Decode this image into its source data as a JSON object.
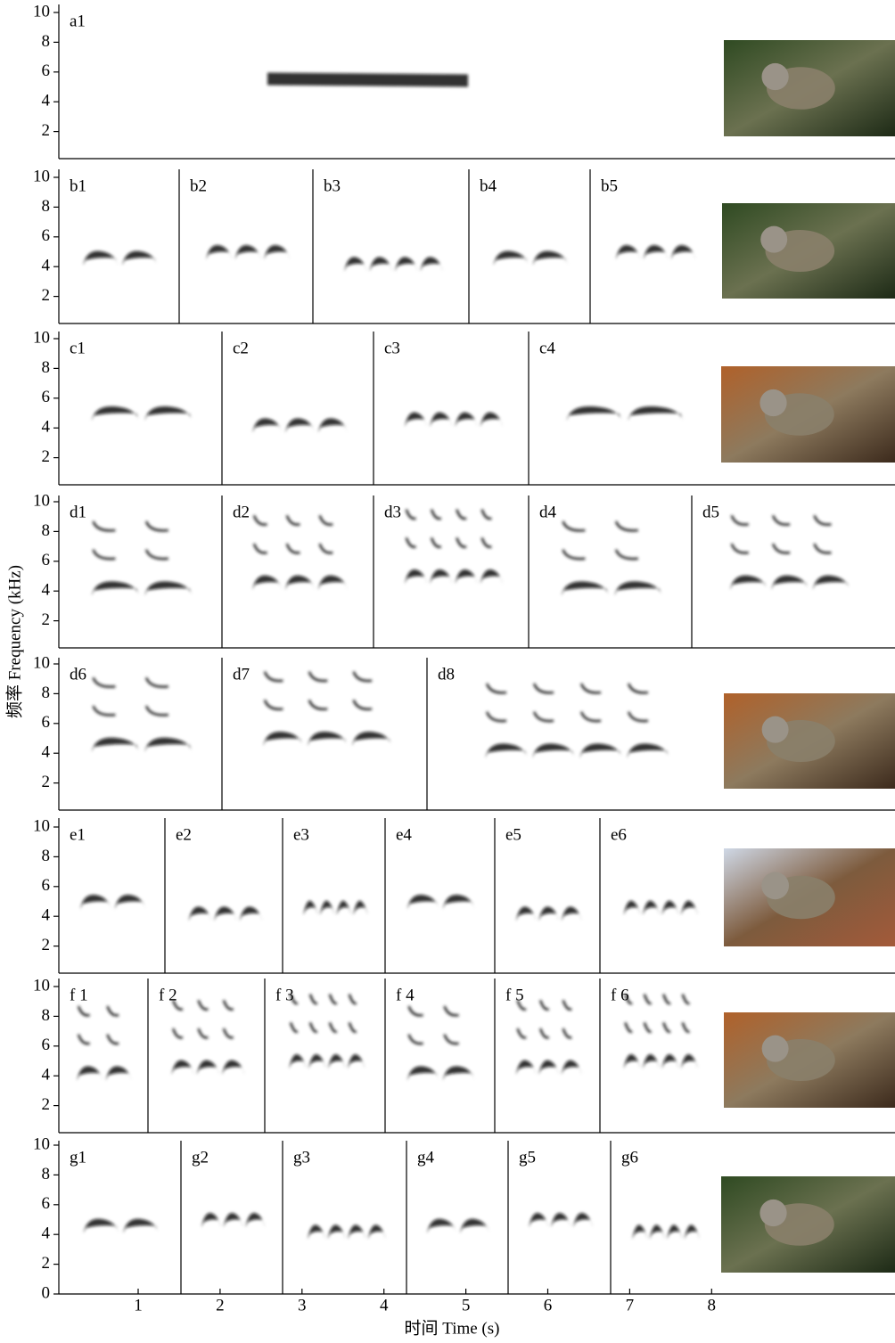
{
  "y_axis": {
    "label": "频率 Frequency (kHz)",
    "ticks": [
      10,
      8,
      6,
      4,
      2
    ],
    "zero_tick": 0
  },
  "x_axis": {
    "label": "时间 Time (s)",
    "ticks": [
      1,
      2,
      3,
      4,
      5,
      6,
      7,
      8
    ]
  },
  "rows": [
    {
      "panels": [
        "a1"
      ]
    },
    {
      "panels": [
        "b1",
        "b2",
        "b3",
        "b4",
        "b5"
      ]
    },
    {
      "panels": [
        "c1",
        "c2",
        "c3",
        "c4"
      ]
    },
    {
      "panels": [
        "d1",
        "d2",
        "d3",
        "d4",
        "d5"
      ]
    },
    {
      "panels": [
        "d6",
        "d7",
        "d8"
      ]
    },
    {
      "panels": [
        "e1",
        "e2",
        "e3",
        "e4",
        "e5",
        "e6"
      ]
    },
    {
      "panels": [
        "f 1",
        "f 2",
        "f 3",
        "f 4",
        "f 5",
        "f 6"
      ]
    },
    {
      "panels": [
        "g1",
        "g2",
        "g3",
        "g4",
        "g5",
        "g6"
      ]
    }
  ]
}
